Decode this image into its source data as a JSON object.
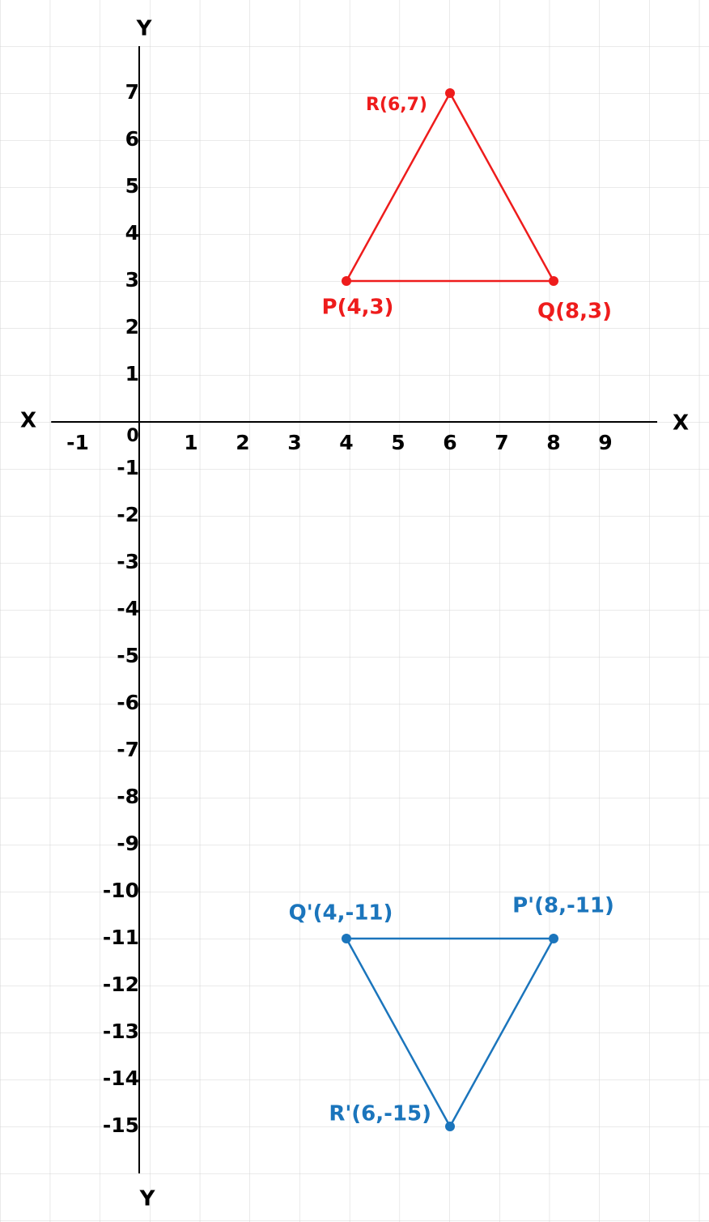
{
  "chart_data": {
    "type": "polygon",
    "axis_labels": {
      "x_left": "X",
      "x_right": "X",
      "y_top": "Y",
      "y_bottom": "Y"
    },
    "xlim": [
      -1.7,
      10
    ],
    "ylim": [
      -16,
      8
    ],
    "xticks": [
      -1,
      0,
      1,
      2,
      3,
      4,
      5,
      6,
      7,
      8,
      9
    ],
    "yticks": [
      7,
      6,
      5,
      4,
      3,
      2,
      1,
      -1,
      -2,
      -3,
      -4,
      -5,
      -6,
      -7,
      -8,
      -9,
      -10,
      -11,
      -12,
      -13,
      -14,
      -15
    ],
    "grid": true,
    "shapes": [
      {
        "color": "#ee1c1c",
        "points": [
          {
            "x": 4,
            "y": 3,
            "label": "P(4,3)"
          },
          {
            "x": 8,
            "y": 3,
            "label": "Q(8,3)"
          },
          {
            "x": 6,
            "y": 7,
            "label": "R(6,7)"
          }
        ]
      },
      {
        "color": "#1b75bc",
        "points": [
          {
            "x": 8,
            "y": -11,
            "label": "P'(8,-11)"
          },
          {
            "x": 4,
            "y": -11,
            "label": "Q'(4,-11)"
          },
          {
            "x": 6,
            "y": -15,
            "label": "R'(6,-15)"
          }
        ]
      }
    ]
  }
}
